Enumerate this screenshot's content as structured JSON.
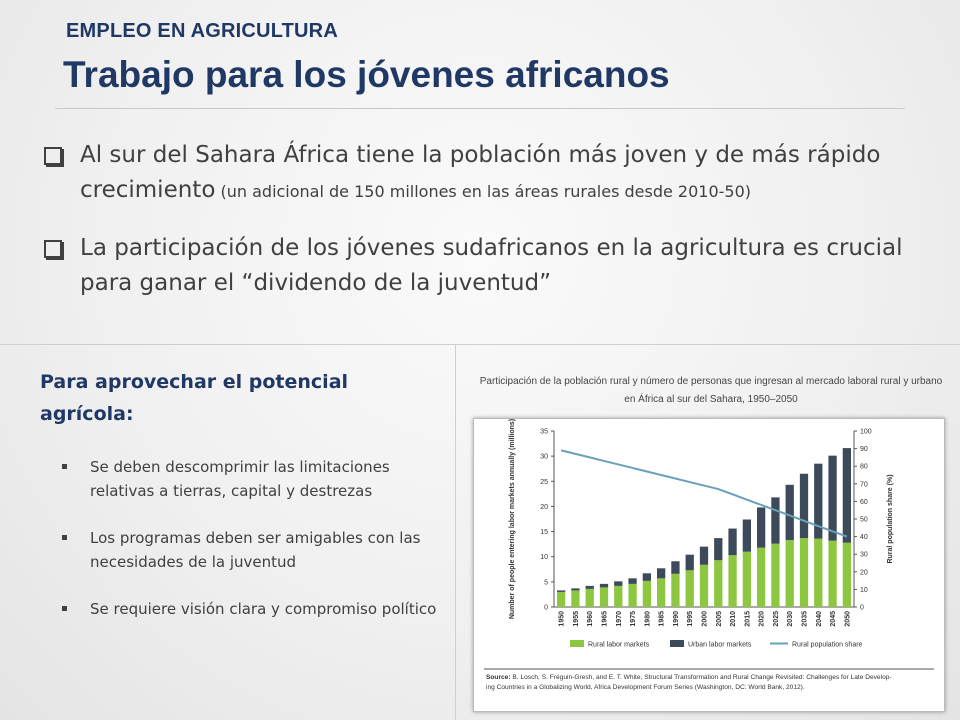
{
  "header": {
    "kicker": "EMPLEO EN AGRICULTURA",
    "title": "Trabajo para los jóvenes africanos"
  },
  "bullets": [
    {
      "main": "Al sur del Sahara África tiene la población más joven y de más rápido crecimiento",
      "note": " (un adicional de 150 millones en las áreas rurales desde 2010-50)"
    },
    {
      "main": "La participación de los jóvenes sudafricanos en la agricultura es crucial para ganar el “dividendo de la juventud”",
      "note": ""
    }
  ],
  "left_panel": {
    "heading": "Para aprovechar el potencial agrícola:",
    "items": [
      "Se deben descomprimir las limitaciones relativas a tierras, capital y destrezas",
      "Los programas deben ser amigables con las necesidades de la juventud",
      "Se requiere visión clara y compromiso político"
    ]
  },
  "figure": {
    "caption": "Participación de la población rural y número de personas que ingresan al mercado laboral rural y urbano en África al sur del Sahara, 1950–2050",
    "source_label": "Source:",
    "source_text": " B. Losch, S. Fréguin-Gresh, and E. T. White, Structural Transformation and Rural Change Revisited: Challenges for Late Developing Countries in a Globalizing World, Africa Development Forum Series (Washington, DC: World Bank, 2012)."
  },
  "chart_data": {
    "type": "bar",
    "stacked": true,
    "categories": [
      "1950",
      "1955",
      "1960",
      "1965",
      "1970",
      "1975",
      "1980",
      "1985",
      "1990",
      "1995",
      "2000",
      "2005",
      "2010",
      "2015",
      "2020",
      "2025",
      "2030",
      "2035",
      "2040",
      "2045",
      "2050"
    ],
    "series": [
      {
        "name": "Rural labor markets",
        "axis": "left",
        "color": "#8dc63f",
        "values": [
          3.0,
          3.3,
          3.6,
          3.9,
          4.2,
          4.6,
          5.2,
          5.7,
          6.6,
          7.3,
          8.4,
          9.3,
          10.3,
          11.0,
          11.8,
          12.6,
          13.3,
          13.7,
          13.6,
          13.2,
          12.8
        ]
      },
      {
        "name": "Urban labor markets",
        "axis": "left",
        "color": "#3c4a5a",
        "values": [
          0.3,
          0.4,
          0.6,
          0.7,
          0.9,
          1.1,
          1.5,
          2.0,
          2.5,
          3.1,
          3.6,
          4.4,
          5.3,
          6.4,
          8.0,
          9.2,
          11.0,
          12.8,
          14.9,
          16.9,
          18.8
        ]
      },
      {
        "name": "Rural population share",
        "type": "line",
        "axis": "right",
        "color": "#6aa0b8",
        "values": [
          89,
          87,
          85,
          83,
          81,
          79,
          77,
          75,
          73,
          71,
          69,
          67,
          64,
          61,
          58,
          55,
          52,
          49,
          46,
          43,
          40
        ]
      }
    ],
    "ylabel": "Number of people entering labor markets annually (millions)",
    "ylabel_right": "Rural population share (%)",
    "ylim": [
      0,
      35
    ],
    "yticks": [
      0,
      5,
      10,
      15,
      20,
      25,
      30,
      35
    ],
    "ylim_right": [
      0,
      100
    ],
    "yticks_right": [
      0,
      10,
      20,
      30,
      40,
      50,
      60,
      70,
      80,
      90,
      100
    ],
    "grid": false,
    "legend_position": "bottom"
  },
  "colors": {
    "title": "#1f3864",
    "rural_bar": "#8dc63f",
    "urban_bar": "#3c4a5a",
    "share_line": "#6aa0b8"
  }
}
